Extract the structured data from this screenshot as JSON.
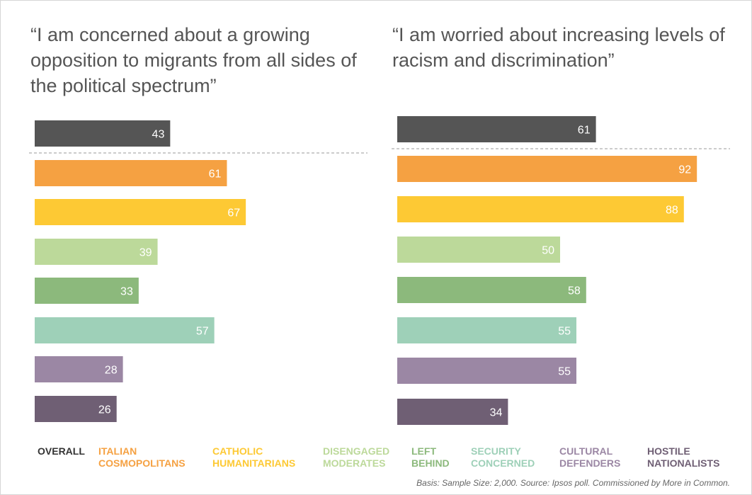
{
  "chart_data": [
    {
      "type": "bar",
      "orientation": "horizontal",
      "title": "“I am concerned about a growing opposition to migrants from all sides of the political spectrum”",
      "categories": [
        "Overall",
        "Italian Cosmopolitans",
        "Catholic Humanitarians",
        "Disengaged Moderates",
        "Left Behind",
        "Security Concerned",
        "Cultural Defenders",
        "Hostile Nationalists"
      ],
      "values": [
        43,
        61,
        67,
        39,
        33,
        57,
        28,
        26
      ],
      "xlim": [
        0,
        100
      ]
    },
    {
      "type": "bar",
      "orientation": "horizontal",
      "title": "“I am worried about increasing levels of racism and discrimination”",
      "categories": [
        "Overall",
        "Italian Cosmopolitans",
        "Catholic Humanitarians",
        "Disengaged Moderates",
        "Left Behind",
        "Security Concerned",
        "Cultural Defenders",
        "Hostile Nationalists"
      ],
      "values": [
        61,
        92,
        88,
        50,
        58,
        55,
        55,
        34
      ],
      "xlim": [
        0,
        100
      ]
    }
  ],
  "colors": [
    "#555555",
    "#f5a142",
    "#fdc934",
    "#bcd99a",
    "#8cb97c",
    "#9ed0b8",
    "#9b87a4",
    "#6f5f74"
  ],
  "legend": [
    {
      "label": "OVERALL",
      "color": "#333333"
    },
    {
      "label": "ITALIAN\nCOSMOPOLITANS",
      "color": "#f5a142"
    },
    {
      "label": "CATHOLIC\nHUMANITARIANS",
      "color": "#fdc934"
    },
    {
      "label": "DISENGAGED\nMODERATES",
      "color": "#bcd99a"
    },
    {
      "label": "LEFT\nBEHIND",
      "color": "#8cb97c"
    },
    {
      "label": "SECURITY\nCONCERNED",
      "color": "#9ed0b8"
    },
    {
      "label": "CULTURAL\nDEFENDERS",
      "color": "#9b87a4"
    },
    {
      "label": "HOSTILE\nNATIONALISTS",
      "color": "#6f5f74"
    }
  ],
  "footnote": "Basis: Sample Size: 2,000. Source: Ipsos poll. Commissioned by More in Common."
}
